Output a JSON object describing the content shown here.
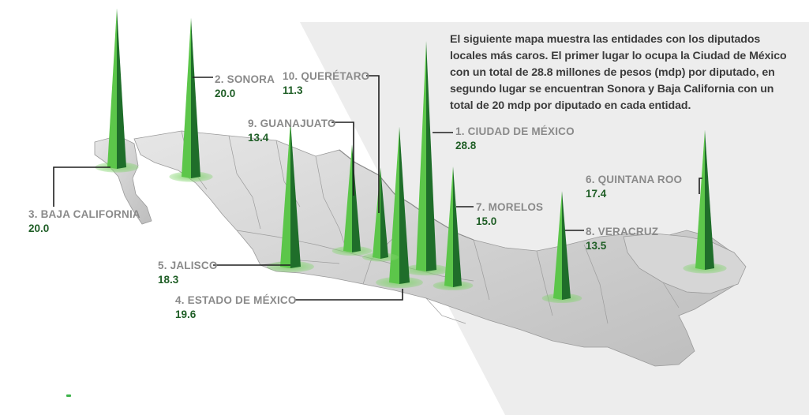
{
  "intro_text": "El siguiente mapa muestra las entidades con los diputados locales más caros. El primer lugar lo ocupa la Ciudad de México con un total de 28.8 millones de pesos (mdp) por diputado, en segundo lugar se encuentran Sonora y Baja California con un total de 20 mdp por diputado en cada entidad.",
  "colors": {
    "spike_light": "#5cc64a",
    "spike_dark": "#1f6e2a",
    "value_text": "#1f5e26",
    "name_text": "#8a8a8a",
    "map_fill": "#d9d9d9",
    "panel": "#ececec"
  },
  "entities": [
    {
      "rank_label": "1. CIUDAD DE MÉXICO",
      "value": 28.8,
      "value_label": "28.8"
    },
    {
      "rank_label": "2. SONORA",
      "value": 20.0,
      "value_label": "20.0"
    },
    {
      "rank_label": "3. BAJA CALIFORNIA",
      "value": 20.0,
      "value_label": "20.0"
    },
    {
      "rank_label": "4. ESTADO DE MÉXICO",
      "value": 19.6,
      "value_label": "19.6"
    },
    {
      "rank_label": "5. JALISCO",
      "value": 18.3,
      "value_label": "18.3"
    },
    {
      "rank_label": "6. QUINTANA ROO",
      "value": 17.4,
      "value_label": "17.4"
    },
    {
      "rank_label": "7. MORELOS",
      "value": 15.0,
      "value_label": "15.0"
    },
    {
      "rank_label": "8. VERACRUZ",
      "value": 13.5,
      "value_label": "13.5"
    },
    {
      "rank_label": "9. GUANAJUATO",
      "value": 13.4,
      "value_label": "13.4"
    },
    {
      "rank_label": "10. QUERÉTARO",
      "value": 11.3,
      "value_label": "11.3"
    }
  ]
}
